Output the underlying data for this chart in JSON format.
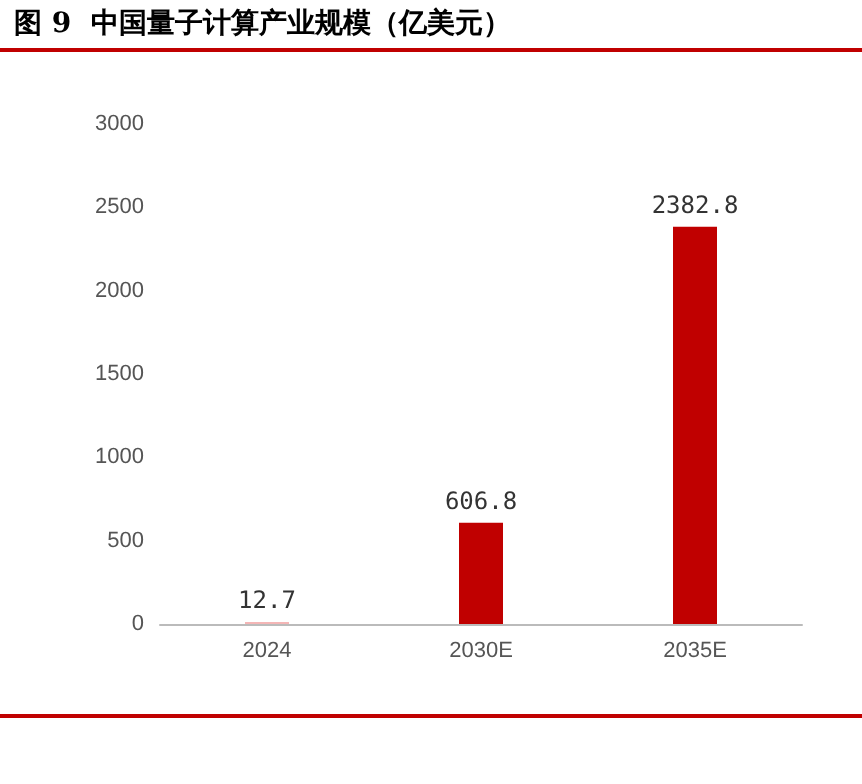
{
  "chart_data": {
    "type": "bar",
    "title": "图 9  中国量子计算产业规模（亿美元）",
    "categories": [
      "2024",
      "2030E",
      "2035E"
    ],
    "values": [
      12.7,
      606.8,
      2382.8
    ],
    "colors": [
      "#f4b6b6",
      "#c00000",
      "#c00000"
    ],
    "ylim": [
      0,
      3000
    ],
    "yticks": [
      0,
      500,
      1000,
      1500,
      2000,
      2500,
      3000
    ],
    "grid": false,
    "data_labels": true
  }
}
